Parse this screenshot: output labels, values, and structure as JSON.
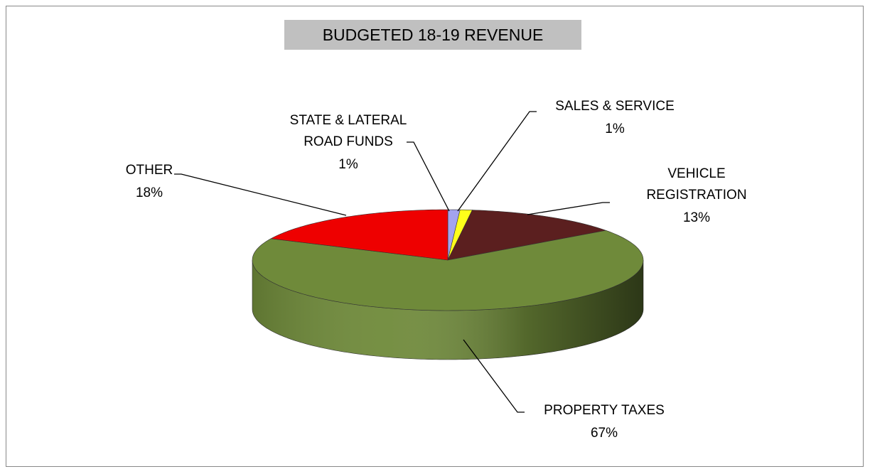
{
  "chart_data": {
    "type": "pie",
    "title": "BUDGETED 18-19 REVENUE",
    "categories": [
      "STATE & LATERAL ROAD FUNDS",
      "SALES & SERVICE",
      "VEHICLE REGISTRATION",
      "PROPERTY TAXES",
      "OTHER"
    ],
    "values": [
      1,
      1,
      13,
      67,
      18
    ],
    "value_labels": [
      "1%",
      "1%",
      "13%",
      "67%",
      "18%"
    ],
    "colors": [
      "#a3a3ee",
      "#ffff1a",
      "#5b1f1f",
      "#6f8a3a",
      "#ee0000"
    ]
  }
}
